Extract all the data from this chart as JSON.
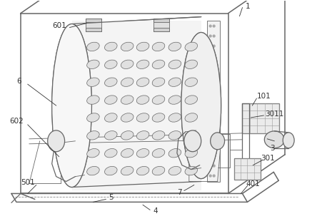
{
  "bg_color": "#ffffff",
  "line_color": "#666666",
  "label_color": "#333333",
  "figsize": [
    4.44,
    3.1
  ],
  "dpi": 100,
  "lw_main": 0.9,
  "lw_thin": 0.6,
  "lw_thick": 1.1
}
